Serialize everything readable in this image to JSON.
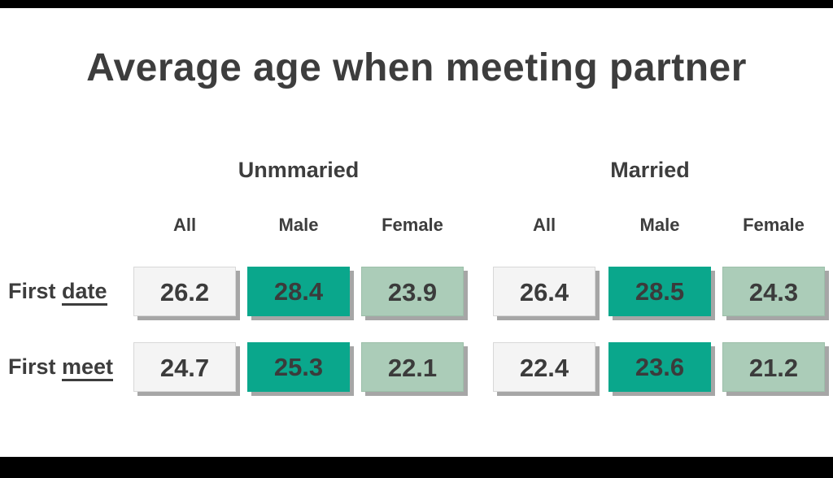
{
  "colors": {
    "background": "#ffffff",
    "frame_bars": "#000000",
    "teal_box": "#0aa78c",
    "light_green_box": "#abccb8",
    "neutral_box": "#f4f4f4",
    "text": "#3d3d3d"
  },
  "chart_data": {
    "type": "table",
    "title": "Average age when meeting partner",
    "group_headers": [
      {
        "label": "Unmmaried"
      },
      {
        "label": "Married"
      }
    ],
    "column_headers": [
      "All",
      "Male",
      "Female",
      "All",
      "Male",
      "Female"
    ],
    "rows": [
      {
        "label": {
          "prefix": "First ",
          "underlined": "date"
        },
        "values": [
          "26.2",
          "28.4",
          "23.9",
          "26.4",
          "28.5",
          "24.3"
        ]
      },
      {
        "label": {
          "prefix": "First ",
          "underlined": "meet"
        },
        "values": [
          "24.7",
          "25.3",
          "22.1",
          "22.4",
          "23.6",
          "21.2"
        ]
      }
    ]
  }
}
